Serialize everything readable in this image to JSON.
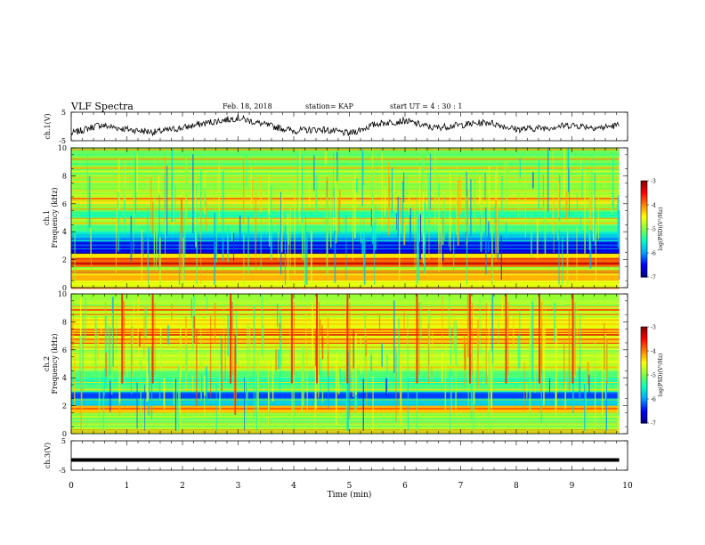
{
  "header": {
    "title": "VLF Spectra",
    "date": "Feb. 18, 2018",
    "station": "station= KAP",
    "start_ut": "start UT =  4 : 30 : 1"
  },
  "colors": {
    "trace": "#000000",
    "colormap": [
      "#000080",
      "#0000ff",
      "#00a0ff",
      "#00ffc0",
      "#80ff40",
      "#ffff00",
      "#ff8000",
      "#ff0000",
      "#800000"
    ]
  },
  "chart_data": [
    {
      "type": "line",
      "panel": "ch1-waveform",
      "ylabel": "ch.1(V)",
      "ylim": [
        -5,
        5
      ],
      "yticks": [
        "5",
        "-5"
      ],
      "xlim": [
        0,
        10
      ],
      "series": [
        {
          "x": [
            0,
            0.5,
            1,
            1.5,
            2,
            2.5,
            3,
            3.5,
            4,
            4.5,
            5,
            5.5,
            6,
            6.5,
            7,
            7.5,
            8,
            8.5,
            9,
            9.5,
            9.85
          ],
          "values": [
            -2.5,
            0.5,
            -1.0,
            -2.0,
            -0.5,
            1.5,
            3.0,
            0.5,
            -1.5,
            -1.0,
            -2.5,
            1.0,
            2.0,
            -0.5,
            0.5,
            1.5,
            -1.0,
            -0.5,
            0.5,
            -0.5,
            0.5
          ]
        }
      ]
    },
    {
      "type": "heatmap",
      "panel": "ch1-spectrogram",
      "ylabel": "ch.1 Frequency (kHz)",
      "ylim": [
        0,
        10
      ],
      "yticks": [
        "0",
        "2",
        "4",
        "6",
        "8",
        "10"
      ],
      "xlim": [
        0,
        9.85
      ],
      "freq_kHz": [
        0.5,
        1,
        1.5,
        2,
        2.5,
        3,
        3.5,
        4,
        4.5,
        5,
        5.5,
        6,
        6.5,
        7,
        7.5,
        8,
        8.5,
        9,
        9.5,
        10
      ],
      "log_psd": [
        -4.6,
        -4.2,
        -4.8,
        -3.9,
        -4.4,
        -6.6,
        -6.3,
        -5.6,
        -5.3,
        -4.9,
        -5.5,
        -5.0,
        -4.4,
        -4.9,
        -5.0,
        -5.0,
        -5.1,
        -5.0,
        -5.0,
        -5.1
      ],
      "colorbar": {
        "label": "log(PSD)(V²/Hz)",
        "range": [
          -7,
          -3
        ],
        "ticks": [
          "-3",
          "-4",
          "-5",
          "-6",
          "-7"
        ]
      }
    },
    {
      "type": "heatmap",
      "panel": "ch2-spectrogram",
      "ylabel": "ch.2 Frequency (kHz)",
      "ylim": [
        0,
        10
      ],
      "yticks": [
        "0",
        "2",
        "4",
        "6",
        "8",
        "10"
      ],
      "xlim": [
        0,
        9.85
      ],
      "freq_kHz": [
        0.5,
        1,
        1.5,
        2,
        2.5,
        3,
        3.5,
        4,
        4.5,
        5,
        5.5,
        6,
        6.5,
        7,
        7.5,
        8,
        8.5,
        9,
        9.5,
        10
      ],
      "log_psd": [
        -4.8,
        -5.2,
        -5.0,
        -4.2,
        -5.8,
        -6.3,
        -5.2,
        -5.4,
        -5.2,
        -4.8,
        -4.8,
        -4.7,
        -4.7,
        -4.6,
        -4.3,
        -4.6,
        -4.6,
        -4.7,
        -4.8,
        -4.9
      ],
      "bursts_min": [
        0.9,
        1.45,
        2.85,
        3.95,
        4.4,
        4.95,
        6.2,
        7.15,
        7.8,
        8.4,
        9.0
      ],
      "colorbar": {
        "label": "log(PSD)(V²/Hz)",
        "range": [
          -7,
          -3
        ],
        "ticks": [
          "-3",
          "-4",
          "-5",
          "-6",
          "-7"
        ]
      }
    },
    {
      "type": "line",
      "panel": "ch3-waveform",
      "ylabel": "ch.3(V)",
      "ylim": [
        -5,
        5
      ],
      "yticks": [
        "5",
        "-5"
      ],
      "xlim": [
        0,
        10
      ],
      "xlabel": "Time (min)",
      "xticks": [
        "0",
        "1",
        "2",
        "3",
        "4",
        "5",
        "6",
        "7",
        "8",
        "9",
        "10"
      ],
      "series": [
        {
          "x": [
            0,
            9.85
          ],
          "values": [
            -1.5,
            -1.5
          ]
        }
      ]
    }
  ]
}
